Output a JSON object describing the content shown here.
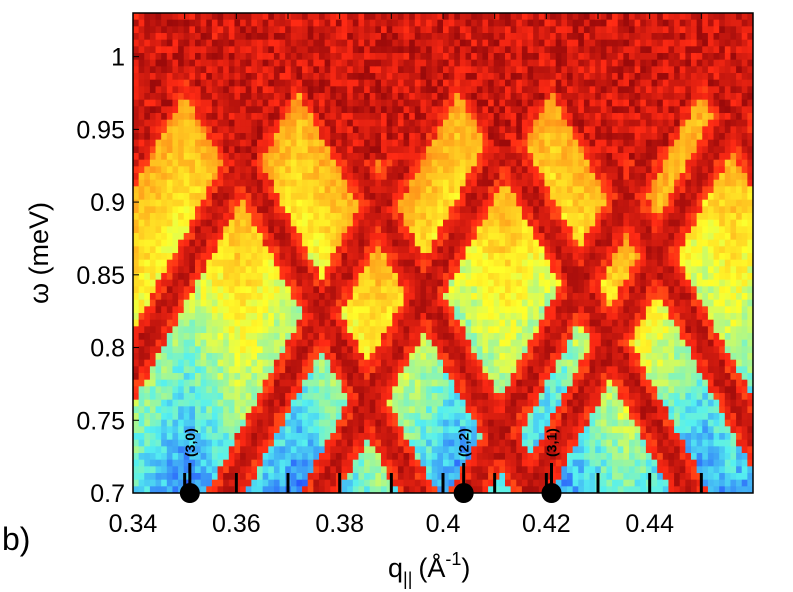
{
  "chart_data": {
    "type": "heatmap",
    "panel_label": "b)",
    "xlabel": {
      "base": "q",
      "sub": "||",
      "unit_open": "(Å",
      "sup": "-1",
      "unit_close": ")"
    },
    "ylabel": "ω (meV)",
    "xlim": [
      0.34,
      0.46
    ],
    "ylim": [
      0.7,
      1.03
    ],
    "x_ticks": [
      0.34,
      0.36,
      0.38,
      0.4,
      0.42,
      0.44
    ],
    "x_tick_labels": [
      "0.34",
      "0.36",
      "0.38",
      "0.4",
      "0.42",
      "0.44"
    ],
    "y_ticks": [
      0.7,
      0.75,
      0.8,
      0.85,
      0.9,
      0.95,
      1.0
    ],
    "y_tick_labels": [
      "0.7",
      "0.75",
      "0.8",
      "0.85",
      "0.9",
      "0.95",
      "1"
    ],
    "minor_x_ticks": [
      0.35,
      0.36,
      0.37,
      0.38,
      0.39,
      0.4,
      0.41,
      0.42,
      0.43,
      0.44,
      0.45
    ],
    "grid": false,
    "colormap": [
      "#1f3cff",
      "#55f0f0",
      "#ffff2a",
      "#ff9a1a",
      "#ff2a14",
      "#9c0a0a"
    ],
    "band_centers": [
      0.35,
      0.372,
      0.403,
      0.421,
      0.45,
      0.462
    ],
    "markers": [
      {
        "x": 0.351,
        "y": 0.7,
        "label": "(3,0)"
      },
      {
        "x": 0.404,
        "y": 0.7,
        "label": "(2,2)"
      },
      {
        "x": 0.421,
        "y": 0.7,
        "label": "(3,1)"
      }
    ]
  }
}
